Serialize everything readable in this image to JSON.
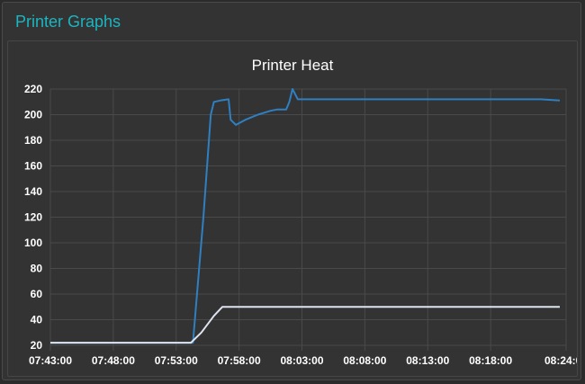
{
  "panel": {
    "title": "Printer Graphs"
  },
  "colors": {
    "panel_title": "#1cb5c0",
    "background": "#333333",
    "gridline": "#4a4a4a",
    "text": "#ffffff"
  },
  "chart_data": {
    "type": "line",
    "title": "Printer Heat",
    "xlabel": "",
    "ylabel": "",
    "x_ticks": [
      "07:43:00",
      "07:48:00",
      "07:53:00",
      "07:58:00",
      "08:03:00",
      "08:08:00",
      "08:13:00",
      "08:18:00",
      "08:24:00"
    ],
    "y_ticks": [
      20,
      40,
      60,
      80,
      100,
      120,
      140,
      160,
      180,
      200,
      220
    ],
    "ylim": [
      20,
      220
    ],
    "xlim": [
      "07:43:00",
      "08:24:00"
    ],
    "grid": true,
    "series": [
      {
        "color": "#2f7fc1",
        "points": [
          [
            "07:43:00",
            22
          ],
          [
            "07:54:20",
            22
          ],
          [
            "07:55:10",
            120
          ],
          [
            "07:55:45",
            200
          ],
          [
            "07:56:00",
            210
          ],
          [
            "07:56:30",
            211
          ],
          [
            "07:57:10",
            212
          ],
          [
            "07:57:20",
            196
          ],
          [
            "07:57:45",
            192
          ],
          [
            "07:58:30",
            196
          ],
          [
            "07:59:30",
            200
          ],
          [
            "08:00:30",
            203
          ],
          [
            "08:01:00",
            204
          ],
          [
            "08:01:45",
            204
          ],
          [
            "08:02:00",
            210
          ],
          [
            "08:02:15",
            220
          ],
          [
            "08:02:40",
            212
          ],
          [
            "08:03:30",
            212
          ],
          [
            "08:08:00",
            212
          ],
          [
            "08:13:00",
            212
          ],
          [
            "08:18:00",
            212
          ],
          [
            "08:22:00",
            212
          ],
          [
            "08:23:30",
            211
          ]
        ]
      },
      {
        "color": "#dde3ef",
        "points": [
          [
            "07:43:00",
            22
          ],
          [
            "07:54:10",
            22
          ],
          [
            "07:55:00",
            30
          ],
          [
            "07:56:00",
            43
          ],
          [
            "07:56:40",
            50
          ],
          [
            "08:00:00",
            50
          ],
          [
            "08:05:00",
            50
          ],
          [
            "08:10:00",
            50
          ],
          [
            "08:15:00",
            50
          ],
          [
            "08:20:00",
            50
          ],
          [
            "08:23:30",
            50
          ]
        ]
      }
    ]
  }
}
